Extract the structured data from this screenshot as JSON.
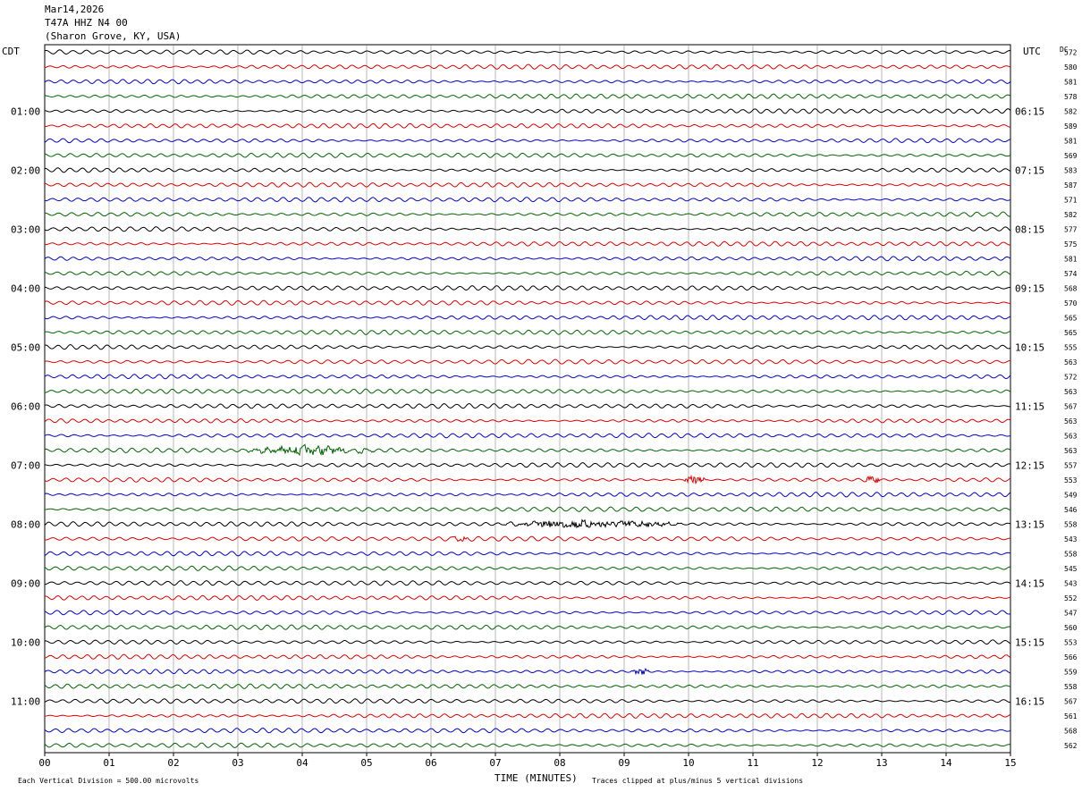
{
  "header": {
    "date": "Mar14,2026",
    "station": "T47A HHZ N4 00",
    "location": "(Sharon Grove, KY, USA)"
  },
  "left_tz": "CDT",
  "right_tz": "UTC",
  "dc_label": "DC",
  "footer": {
    "scale_note": "Each Vertical Division =  500.00 microvolts",
    "clip_note": "Traces clipped at plus/minus 5 vertical divisions",
    "xlabel": "TIME (MINUTES)"
  },
  "chart_data": {
    "type": "line",
    "xlabel": "TIME (MINUTES)",
    "xlim": [
      0,
      15
    ],
    "x_ticks": [
      "00",
      "01",
      "02",
      "03",
      "04",
      "05",
      "06",
      "07",
      "08",
      "09",
      "10",
      "11",
      "12",
      "13",
      "14",
      "15"
    ],
    "trace_count": 48,
    "trace_colors": [
      "#000000",
      "#e00000",
      "#0000cc",
      "#006400"
    ],
    "grid": true,
    "left_hour_labels": [
      {
        "trace": 4,
        "label": "01:00"
      },
      {
        "trace": 8,
        "label": "02:00"
      },
      {
        "trace": 12,
        "label": "03:00"
      },
      {
        "trace": 16,
        "label": "04:00"
      },
      {
        "trace": 20,
        "label": "05:00"
      },
      {
        "trace": 24,
        "label": "06:00"
      },
      {
        "trace": 28,
        "label": "07:00"
      },
      {
        "trace": 32,
        "label": "08:00"
      },
      {
        "trace": 36,
        "label": "09:00"
      },
      {
        "trace": 40,
        "label": "10:00"
      },
      {
        "trace": 44,
        "label": "11:00"
      }
    ],
    "right_hour_labels": [
      {
        "trace": 4,
        "label": "06:15"
      },
      {
        "trace": 8,
        "label": "07:15"
      },
      {
        "trace": 12,
        "label": "08:15"
      },
      {
        "trace": 16,
        "label": "09:15"
      },
      {
        "trace": 20,
        "label": "10:15"
      },
      {
        "trace": 24,
        "label": "11:15"
      },
      {
        "trace": 28,
        "label": "12:15"
      },
      {
        "trace": 32,
        "label": "13:15"
      },
      {
        "trace": 36,
        "label": "14:15"
      },
      {
        "trace": 40,
        "label": "15:15"
      },
      {
        "trace": 44,
        "label": "16:15"
      }
    ],
    "dc_values": [
      "572",
      "580",
      "581",
      "578",
      "582",
      "589",
      "581",
      "569",
      "583",
      "587",
      "571",
      "582",
      "577",
      "575",
      "581",
      "574",
      "568",
      "570",
      "565",
      "565",
      "555",
      "563",
      "572",
      "563",
      "567",
      "563",
      "563",
      "563",
      "557",
      "553",
      "549",
      "546",
      "558",
      "543",
      "558",
      "545",
      "543",
      "552",
      "547",
      "560",
      "553",
      "566",
      "559",
      "558",
      "567",
      "561",
      "568",
      "562"
    ],
    "events": [
      {
        "trace": 27,
        "start_min": 3.0,
        "end_min": 5.2
      },
      {
        "trace": 29,
        "start_min": 9.9,
        "end_min": 10.3
      },
      {
        "trace": 29,
        "start_min": 12.7,
        "end_min": 13.0
      },
      {
        "trace": 32,
        "start_min": 7.0,
        "end_min": 10.0
      },
      {
        "trace": 33,
        "start_min": 6.3,
        "end_min": 6.6
      },
      {
        "trace": 42,
        "start_min": 9.1,
        "end_min": 9.4
      }
    ]
  }
}
